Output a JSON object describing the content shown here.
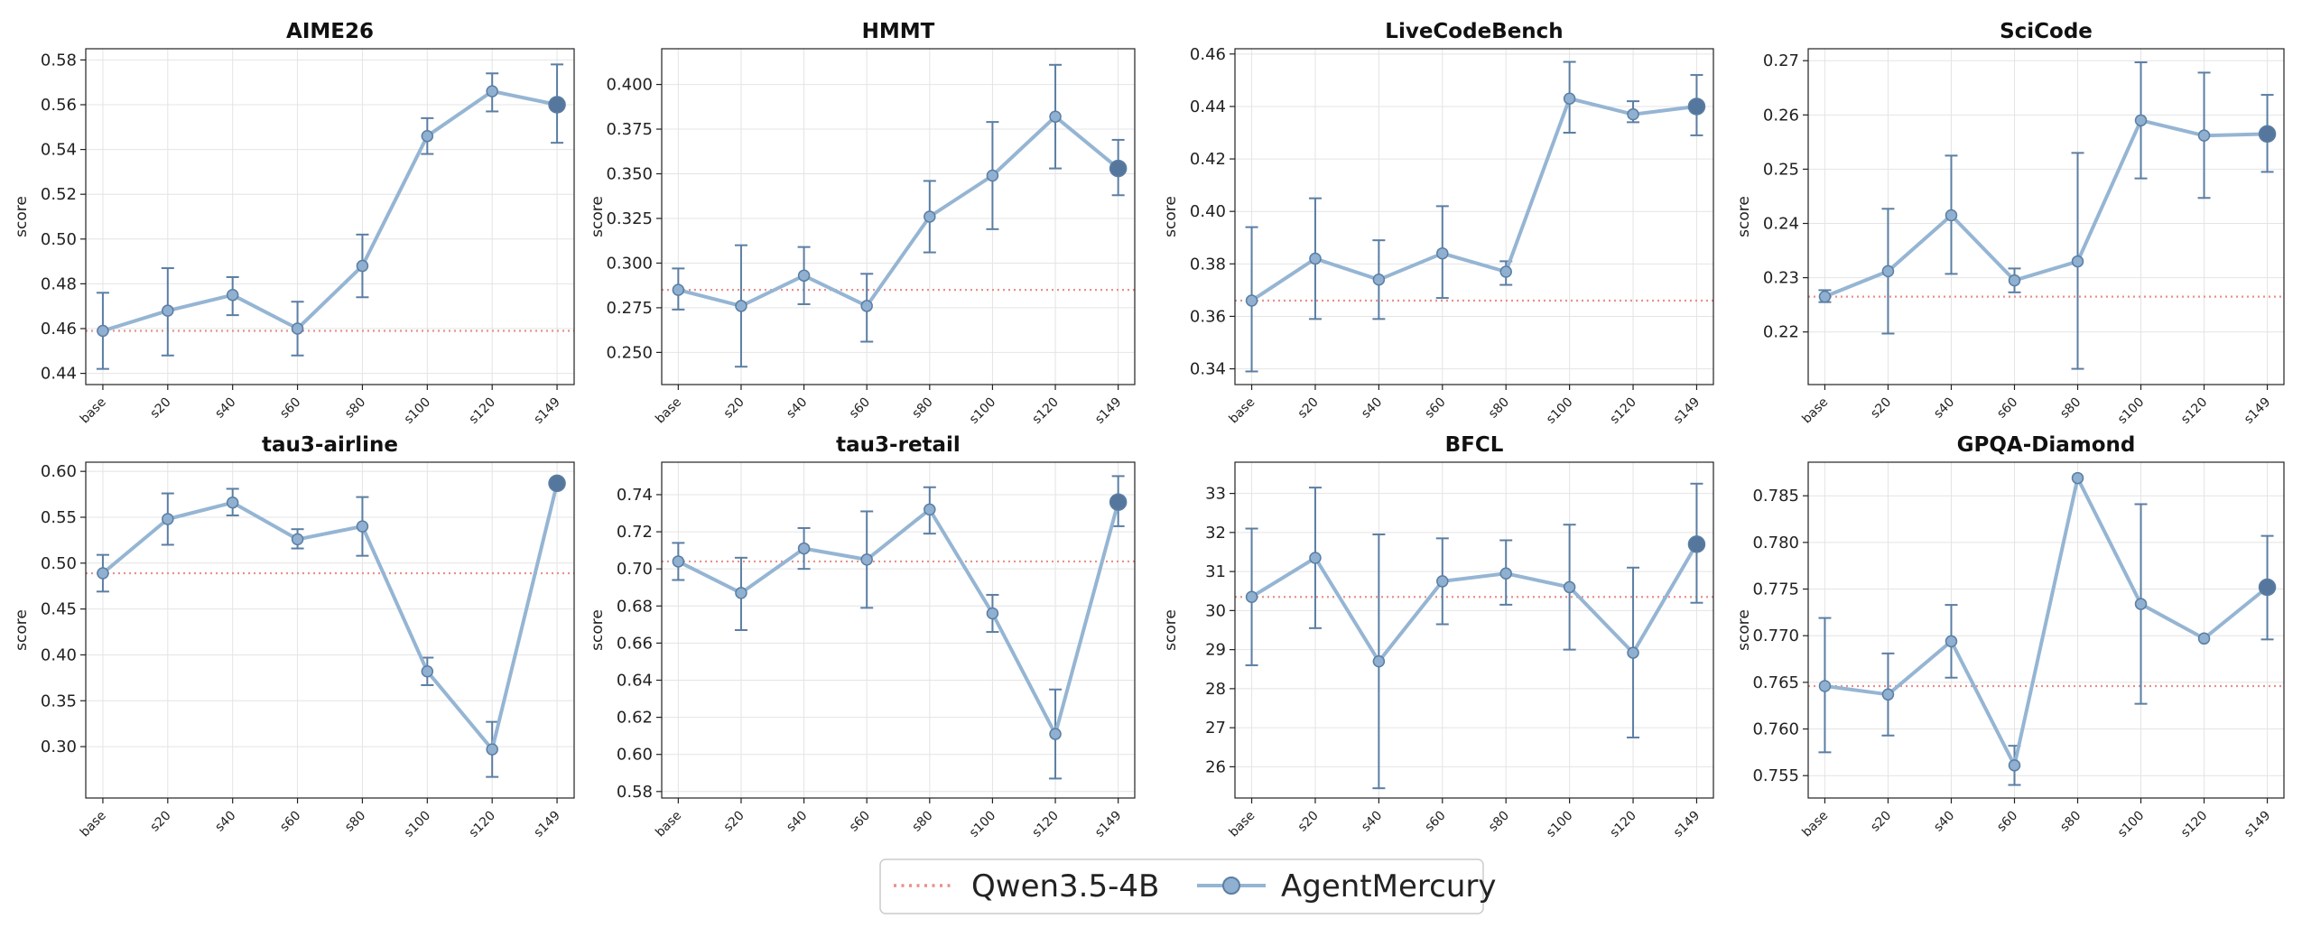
{
  "legend": {
    "baseline_label": "Qwen3.5-4B",
    "model_label": "AgentMercury"
  },
  "colors": {
    "line": "#95b5d3",
    "point": "#8fb0d0",
    "point_edge": "#5b7ea3",
    "errorbar": "#5b7ea3",
    "final_point": "#56779d",
    "baseline": "#e8908a",
    "grid": "#e4e4e4"
  },
  "chart_data": [
    {
      "type": "line",
      "title": "AIME26",
      "ylabel": "score",
      "categories": [
        "base",
        "s20",
        "s40",
        "s60",
        "s80",
        "s100",
        "s120",
        "s149"
      ],
      "series": [
        {
          "name": "AgentMercury",
          "values": [
            0.459,
            0.468,
            0.475,
            0.46,
            0.488,
            0.546,
            0.566,
            0.56
          ],
          "err_low": [
            0.442,
            0.448,
            0.466,
            0.448,
            0.474,
            0.538,
            0.557,
            0.543
          ],
          "err_high": [
            0.476,
            0.487,
            0.483,
            0.472,
            0.502,
            0.554,
            0.574,
            0.578
          ]
        }
      ],
      "baseline": 0.459,
      "ylim": [
        0.435,
        0.585
      ],
      "yticks": [
        0.44,
        0.46,
        0.48,
        0.5,
        0.52,
        0.54,
        0.56,
        0.58
      ],
      "ytick_labels": [
        "0.44",
        "0.46",
        "0.48",
        "0.50",
        "0.52",
        "0.54",
        "0.56",
        "0.58"
      ]
    },
    {
      "type": "line",
      "title": "HMMT",
      "ylabel": "score",
      "categories": [
        "base",
        "s20",
        "s40",
        "s60",
        "s80",
        "s100",
        "s120",
        "s149"
      ],
      "series": [
        {
          "name": "AgentMercury",
          "values": [
            0.285,
            0.276,
            0.293,
            0.276,
            0.326,
            0.349,
            0.382,
            0.353
          ],
          "err_low": [
            0.274,
            0.242,
            0.277,
            0.256,
            0.306,
            0.319,
            0.353,
            0.338
          ],
          "err_high": [
            0.297,
            0.31,
            0.309,
            0.294,
            0.346,
            0.379,
            0.411,
            0.369
          ]
        }
      ],
      "baseline": 0.285,
      "ylim": [
        0.232,
        0.42
      ],
      "yticks": [
        0.25,
        0.275,
        0.3,
        0.325,
        0.35,
        0.375,
        0.4
      ],
      "ytick_labels": [
        "0.250",
        "0.275",
        "0.300",
        "0.325",
        "0.350",
        "0.375",
        "0.400"
      ]
    },
    {
      "type": "line",
      "title": "LiveCodeBench",
      "ylabel": "score",
      "categories": [
        "base",
        "s20",
        "s40",
        "s60",
        "s80",
        "s100",
        "s120",
        "s149"
      ],
      "series": [
        {
          "name": "AgentMercury",
          "values": [
            0.366,
            0.382,
            0.374,
            0.384,
            0.377,
            0.443,
            0.437,
            0.44
          ],
          "err_low": [
            0.339,
            0.359,
            0.359,
            0.367,
            0.372,
            0.43,
            0.434,
            0.429
          ],
          "err_high": [
            0.394,
            0.405,
            0.389,
            0.402,
            0.381,
            0.457,
            0.442,
            0.452
          ]
        }
      ],
      "baseline": 0.366,
      "ylim": [
        0.334,
        0.462
      ],
      "yticks": [
        0.34,
        0.36,
        0.38,
        0.4,
        0.42,
        0.44,
        0.46
      ],
      "ytick_labels": [
        "0.34",
        "0.36",
        "0.38",
        "0.40",
        "0.42",
        "0.44",
        "0.46"
      ]
    },
    {
      "type": "line",
      "title": "SciCode",
      "ylabel": "score",
      "categories": [
        "base",
        "s20",
        "s40",
        "s60",
        "s80",
        "s100",
        "s120",
        "s149"
      ],
      "series": [
        {
          "name": "AgentMercury",
          "values": [
            0.2265,
            0.2312,
            0.2415,
            0.2295,
            0.233,
            0.259,
            0.2562,
            0.2565
          ],
          "err_low": [
            0.2255,
            0.2197,
            0.2307,
            0.2273,
            0.2132,
            0.2483,
            0.2447,
            0.2495
          ],
          "err_high": [
            0.2277,
            0.2427,
            0.2525,
            0.2317,
            0.253,
            0.2697,
            0.2678,
            0.2637
          ]
        }
      ],
      "baseline": 0.2265,
      "ylim": [
        0.2103,
        0.2722
      ],
      "yticks": [
        0.22,
        0.23,
        0.24,
        0.25,
        0.26,
        0.27
      ],
      "ytick_labels": [
        "0.22",
        "0.23",
        "0.24",
        "0.25",
        "0.26",
        "0.27"
      ]
    },
    {
      "type": "line",
      "title": "tau3-airline",
      "ylabel": "score",
      "categories": [
        "base",
        "s20",
        "s40",
        "s60",
        "s80",
        "s100",
        "s120",
        "s149"
      ],
      "series": [
        {
          "name": "AgentMercury",
          "values": [
            0.489,
            0.548,
            0.566,
            0.526,
            0.54,
            0.382,
            0.297,
            0.587
          ],
          "err_low": [
            0.469,
            0.52,
            0.552,
            0.516,
            0.508,
            0.367,
            0.267,
            0.587
          ],
          "err_high": [
            0.509,
            0.576,
            0.581,
            0.537,
            0.572,
            0.397,
            0.327,
            0.587
          ]
        }
      ],
      "baseline": 0.489,
      "ylim": [
        0.244,
        0.61
      ],
      "yticks": [
        0.3,
        0.35,
        0.4,
        0.45,
        0.5,
        0.55,
        0.6
      ],
      "ytick_labels": [
        "0.30",
        "0.35",
        "0.40",
        "0.45",
        "0.50",
        "0.55",
        "0.60"
      ]
    },
    {
      "type": "line",
      "title": "tau3-retail",
      "ylabel": "score",
      "categories": [
        "base",
        "s20",
        "s40",
        "s60",
        "s80",
        "s100",
        "s120",
        "s149"
      ],
      "series": [
        {
          "name": "AgentMercury",
          "values": [
            0.704,
            0.687,
            0.711,
            0.705,
            0.732,
            0.676,
            0.611,
            0.736
          ],
          "err_low": [
            0.694,
            0.667,
            0.7,
            0.679,
            0.719,
            0.666,
            0.587,
            0.723
          ],
          "err_high": [
            0.714,
            0.706,
            0.722,
            0.731,
            0.744,
            0.686,
            0.635,
            0.75
          ]
        }
      ],
      "baseline": 0.704,
      "ylim": [
        0.5765,
        0.7575
      ],
      "yticks": [
        0.58,
        0.6,
        0.62,
        0.64,
        0.66,
        0.68,
        0.7,
        0.72,
        0.74
      ],
      "ytick_labels": [
        "0.58",
        "0.60",
        "0.62",
        "0.64",
        "0.66",
        "0.68",
        "0.70",
        "0.72",
        "0.74"
      ]
    },
    {
      "type": "line",
      "title": "BFCL",
      "ylabel": "score",
      "categories": [
        "base",
        "s20",
        "s40",
        "s60",
        "s80",
        "s100",
        "s120",
        "s149"
      ],
      "series": [
        {
          "name": "AgentMercury",
          "values": [
            30.35,
            31.35,
            28.7,
            30.75,
            30.95,
            30.6,
            28.92,
            31.7
          ],
          "err_low": [
            28.6,
            29.55,
            25.45,
            29.65,
            30.15,
            29.0,
            26.75,
            30.2
          ],
          "err_high": [
            32.1,
            33.15,
            31.95,
            31.85,
            31.8,
            32.2,
            31.1,
            33.25
          ]
        }
      ],
      "baseline": 30.35,
      "ylim": [
        25.2,
        33.8
      ],
      "yticks": [
        26,
        27,
        28,
        29,
        30,
        31,
        32,
        33
      ],
      "ytick_labels": [
        "26",
        "27",
        "28",
        "29",
        "30",
        "31",
        "32",
        "33"
      ]
    },
    {
      "type": "line",
      "title": "GPQA-Diamond",
      "ylabel": "score",
      "categories": [
        "base",
        "s20",
        "s40",
        "s60",
        "s80",
        "s100",
        "s120",
        "s149"
      ],
      "series": [
        {
          "name": "AgentMercury",
          "values": [
            0.7646,
            0.7637,
            0.7694,
            0.7561,
            0.7869,
            0.7734,
            0.7697,
            0.7752
          ],
          "err_low": [
            0.7575,
            0.7593,
            0.7655,
            0.754,
            0.7869,
            0.7627,
            0.7697,
            0.7696
          ],
          "err_high": [
            0.7719,
            0.7681,
            0.7733,
            0.7582,
            0.7869,
            0.7841,
            0.7697,
            0.7807
          ]
        }
      ],
      "baseline": 0.7646,
      "ylim": [
        0.7526,
        0.7886
      ],
      "yticks": [
        0.755,
        0.76,
        0.765,
        0.77,
        0.775,
        0.78,
        0.785
      ],
      "ytick_labels": [
        "0.755",
        "0.760",
        "0.765",
        "0.770",
        "0.775",
        "0.780",
        "0.785"
      ]
    }
  ]
}
